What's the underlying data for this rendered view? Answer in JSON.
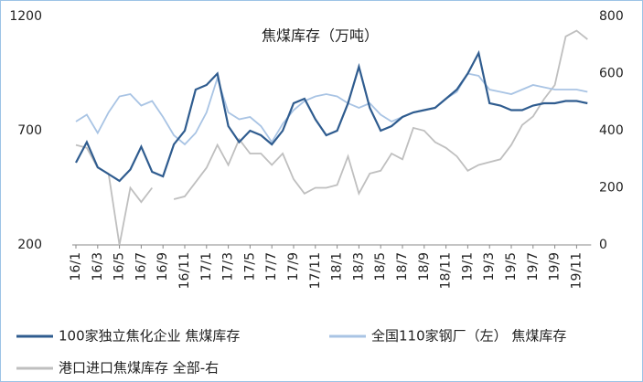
{
  "chart_data": {
    "type": "line",
    "title": "焦煤库存（万吨）",
    "categories": [
      "16/1",
      null,
      "16/3",
      null,
      "16/5",
      null,
      "16/7",
      null,
      "16/9",
      null,
      "16/11",
      null,
      "17/1",
      null,
      "17/3",
      null,
      "17/5",
      null,
      "17/7",
      null,
      "17/9",
      null,
      "17/11",
      null,
      "18/1",
      null,
      "18/3",
      null,
      "18/5",
      null,
      "18/7",
      null,
      "18/9",
      null,
      "18/11",
      null,
      "19/1",
      null,
      "19/3",
      null,
      "19/5",
      null,
      "19/7",
      null,
      "19/9",
      null,
      "19/11",
      null
    ],
    "series": [
      {
        "name": "100家独立焦化企业 焦煤库存",
        "color": "#2f5c8f",
        "axis": "y",
        "values": [
          560,
          650,
          540,
          510,
          480,
          530,
          630,
          520,
          500,
          640,
          700,
          880,
          900,
          950,
          720,
          650,
          700,
          680,
          640,
          700,
          820,
          840,
          750,
          680,
          700,
          820,
          980,
          800,
          700,
          720,
          760,
          780,
          790,
          800,
          840,
          880,
          950,
          1040,
          820,
          810,
          790,
          790,
          810,
          820,
          820,
          830,
          830,
          820
        ]
      },
      {
        "name": "全国110家钢厂（左） 焦煤库存",
        "color": "#a9c4e4",
        "axis": "y",
        "values": [
          740,
          770,
          690,
          780,
          850,
          860,
          810,
          830,
          760,
          680,
          640,
          690,
          780,
          930,
          780,
          750,
          760,
          720,
          650,
          730,
          790,
          830,
          850,
          860,
          850,
          820,
          800,
          820,
          770,
          740,
          760,
          780,
          790,
          800,
          840,
          870,
          950,
          940,
          880,
          870,
          860,
          880,
          900,
          890,
          880,
          880,
          880,
          870
        ]
      },
      {
        "name": "港口进口焦煤库存 全部-右",
        "color": "#bfbfbf",
        "axis": "y2",
        "values": [
          350,
          340,
          270,
          250,
          0,
          200,
          150,
          200,
          null,
          160,
          170,
          220,
          270,
          350,
          280,
          370,
          320,
          320,
          280,
          320,
          230,
          180,
          200,
          200,
          210,
          310,
          180,
          250,
          260,
          320,
          300,
          410,
          400,
          360,
          340,
          310,
          260,
          280,
          290,
          300,
          350,
          420,
          450,
          510,
          560,
          730,
          750,
          720
        ]
      }
    ],
    "ylim": [
      200,
      1200
    ],
    "yticks": [
      200,
      700,
      1200
    ],
    "y2lim": [
      0,
      800
    ],
    "y2ticks": [
      0,
      200,
      400,
      600,
      800
    ]
  }
}
